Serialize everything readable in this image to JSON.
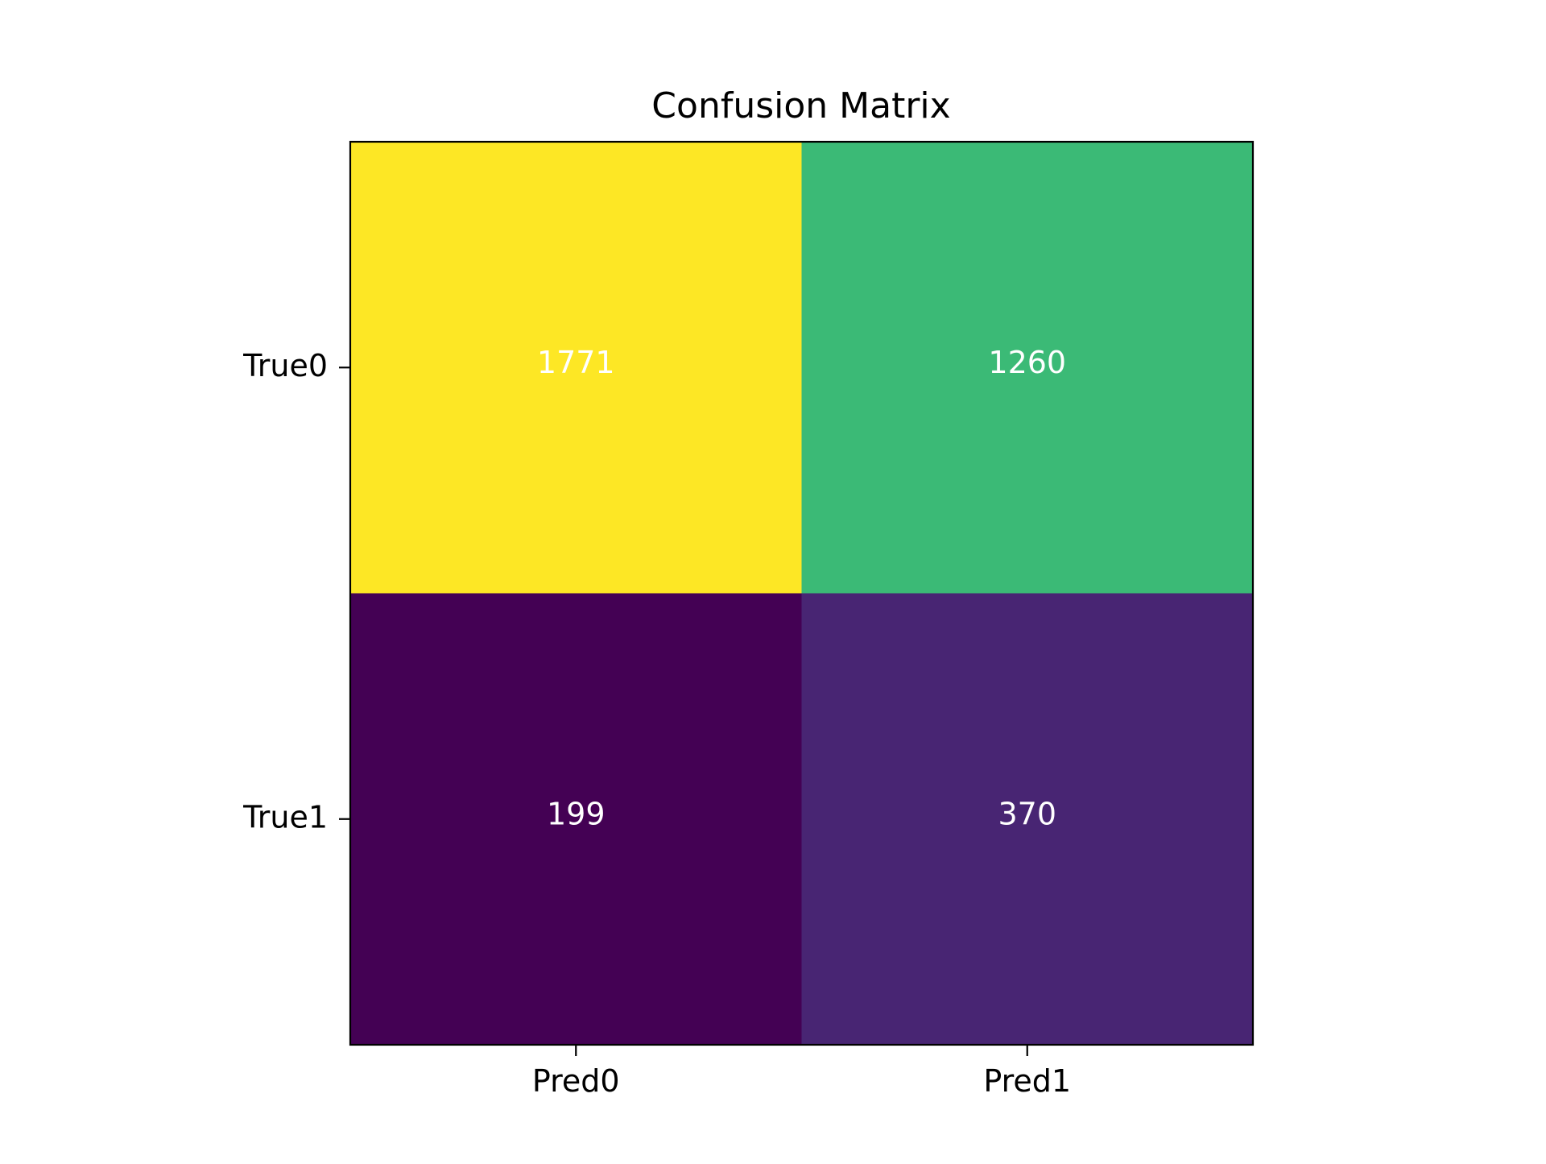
{
  "chart_data": {
    "type": "heatmap",
    "title": "Confusion Matrix",
    "xlabel": "",
    "ylabel": "",
    "x_categories": [
      "Pred0",
      "Pred1"
    ],
    "y_categories": [
      "True0",
      "True1"
    ],
    "values": [
      [
        1771,
        1260
      ],
      [
        199,
        370
      ]
    ],
    "colormap": "viridis",
    "cell_colors": [
      [
        "#fde725",
        "#3bba76"
      ],
      [
        "#440154",
        "#482573"
      ]
    ],
    "annotation_color": "#ffffff",
    "grid": false,
    "legend": false
  }
}
